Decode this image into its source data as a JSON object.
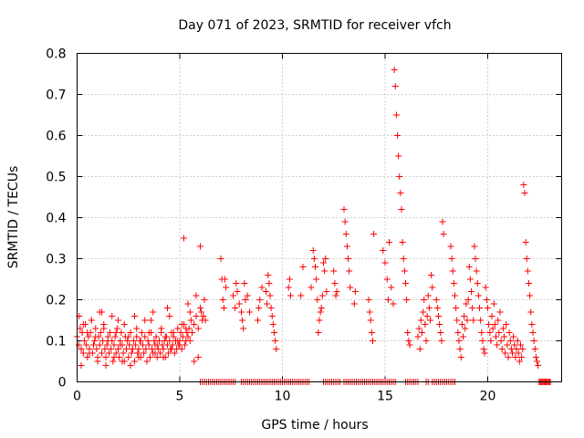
{
  "chart_data": {
    "type": "scatter",
    "title": "Day 071 of 2023, SRMTID for receiver vfch",
    "xlabel": "GPS time / hours",
    "ylabel": "SRMTID / TECUs",
    "xlim": [
      0,
      23.6
    ],
    "ylim": [
      0,
      0.8
    ],
    "x_ticks": [
      0,
      5,
      10,
      15,
      20
    ],
    "x_tick_labels": [
      "0",
      "5",
      "10",
      "15",
      "20"
    ],
    "y_ticks": [
      0,
      0.1,
      0.2,
      0.3,
      0.4,
      0.5,
      0.6,
      0.7,
      0.8
    ],
    "y_tick_labels": [
      "0",
      "0.1",
      "0.2",
      "0.3",
      "0.4",
      "0.5",
      "0.6",
      "0.7",
      "0.8"
    ],
    "grid": true,
    "marker": "+",
    "color": "#ff0000",
    "series": [
      {
        "name": "vfch",
        "x": [
          0.0,
          0.08,
          0.15,
          0.2,
          0.25,
          0.3,
          0.35,
          0.4,
          0.45,
          0.5,
          0.55,
          0.6,
          0.65,
          0.7,
          0.75,
          0.8,
          0.85,
          0.9,
          0.95,
          1.0,
          1.05,
          1.1,
          1.15,
          1.2,
          1.25,
          1.3,
          1.35,
          1.4,
          1.45,
          1.5,
          1.55,
          1.6,
          1.65,
          1.7,
          1.75,
          1.8,
          1.85,
          1.9,
          1.95,
          2.0,
          2.05,
          2.1,
          2.15,
          2.2,
          2.25,
          2.3,
          2.35,
          2.4,
          2.45,
          2.5,
          2.55,
          2.6,
          2.65,
          2.7,
          2.75,
          2.8,
          2.85,
          2.9,
          2.95,
          3.0,
          3.05,
          3.1,
          3.15,
          3.2,
          3.25,
          3.3,
          3.35,
          3.4,
          3.45,
          3.5,
          3.55,
          3.6,
          3.65,
          3.7,
          3.75,
          3.8,
          3.85,
          3.9,
          3.95,
          4.0,
          4.05,
          4.1,
          4.15,
          4.2,
          4.25,
          4.3,
          4.35,
          4.4,
          4.45,
          4.5,
          4.55,
          4.6,
          4.65,
          4.7,
          4.75,
          4.8,
          4.85,
          4.9,
          4.95,
          5.0,
          5.05,
          5.1,
          5.15,
          5.2,
          5.25,
          5.3,
          5.35,
          5.4,
          5.45,
          5.5,
          5.55,
          5.6,
          5.7,
          5.8,
          5.9,
          6.0,
          6.1,
          6.2,
          0.1,
          0.3,
          0.5,
          0.7,
          0.9,
          1.1,
          1.3,
          1.5,
          1.7,
          1.9,
          2.1,
          2.3,
          2.5,
          2.7,
          2.9,
          3.1,
          3.3,
          3.5,
          3.7,
          3.9,
          4.1,
          4.3,
          4.5,
          4.7,
          4.9,
          5.1,
          5.3,
          5.5,
          5.7,
          5.9,
          0.2,
          0.6,
          1.0,
          1.4,
          1.8,
          2.2,
          2.6,
          3.0,
          3.4,
          3.8,
          4.2,
          4.6,
          5.0,
          5.4,
          5.8,
          6.05,
          6.15,
          6.25,
          0.4,
          1.2,
          2.0,
          2.8,
          3.6,
          4.4,
          5.2,
          6.0,
          7.0,
          7.05,
          7.1,
          7.15,
          7.2,
          7.25,
          7.6,
          7.7,
          7.75,
          7.8,
          7.9,
          8.0,
          8.05,
          8.1,
          8.15,
          8.2,
          8.3,
          8.4,
          8.8,
          8.85,
          8.9,
          9.0,
          9.2,
          9.25,
          9.3,
          9.35,
          9.4,
          9.45,
          9.5,
          9.55,
          9.6,
          9.65,
          9.7,
          10.3,
          10.35,
          10.4,
          10.9,
          11.0,
          11.4,
          11.5,
          11.55,
          11.6,
          11.65,
          11.7,
          11.75,
          11.8,
          11.85,
          11.9,
          11.95,
          12.0,
          12.05,
          12.1,
          12.15,
          12.5,
          12.55,
          12.6,
          12.65,
          13.0,
          13.05,
          13.1,
          13.15,
          13.2,
          13.25,
          13.3,
          13.5,
          13.55,
          14.2,
          14.25,
          14.3,
          14.35,
          14.4,
          14.45,
          14.9,
          15.0,
          15.1,
          15.15,
          15.2,
          15.3,
          15.4,
          15.45,
          15.5,
          15.55,
          15.6,
          15.65,
          15.7,
          15.75,
          15.8,
          15.85,
          15.9,
          15.95,
          16.0,
          16.05,
          16.1,
          16.15,
          16.2,
          16.6,
          16.65,
          16.7,
          16.75,
          16.8,
          16.85,
          16.9,
          16.95,
          17.0,
          17.05,
          17.1,
          17.15,
          17.2,
          17.25,
          17.3,
          17.5,
          17.55,
          17.6,
          17.65,
          17.7,
          17.75,
          17.8,
          17.85,
          18.2,
          18.25,
          18.3,
          18.35,
          18.4,
          18.45,
          18.5,
          18.55,
          18.6,
          18.65,
          18.7,
          18.75,
          18.8,
          18.85,
          18.9,
          18.95,
          19.0,
          19.05,
          19.1,
          19.15,
          19.2,
          19.25,
          19.3,
          19.35,
          19.4,
          19.45,
          19.5,
          19.55,
          19.6,
          19.65,
          19.7,
          19.75,
          19.8,
          19.85,
          19.9,
          19.95,
          20.0,
          20.05,
          20.1,
          20.15,
          20.2,
          20.25,
          20.3,
          20.35,
          20.4,
          20.45,
          20.5,
          20.55,
          20.6,
          20.65,
          20.7,
          20.75,
          20.8,
          20.85,
          20.9,
          20.95,
          21.0,
          21.05,
          21.1,
          21.15,
          21.2,
          21.25,
          21.3,
          21.35,
          21.4,
          21.45,
          21.5,
          21.55,
          21.6,
          21.65,
          21.7,
          21.75,
          21.8,
          21.85,
          21.9,
          21.95,
          22.0,
          22.05,
          22.1,
          22.15,
          22.2,
          22.25,
          22.3,
          22.35,
          22.4,
          22.45,
          22.5,
          22.55,
          22.6,
          22.65,
          22.7,
          22.75,
          22.8,
          22.85,
          22.9,
          22.95,
          23.0,
          23.05,
          6.0,
          6.1,
          6.2,
          6.3,
          6.4,
          6.5,
          6.6,
          6.7,
          6.8,
          6.9,
          7.0,
          7.1,
          7.2,
          7.3,
          7.4,
          7.5,
          7.6,
          7.7,
          8.0,
          8.1,
          8.2,
          8.3,
          8.4,
          8.5,
          8.6,
          8.7,
          8.8,
          8.9,
          9.0,
          9.1,
          9.2,
          9.3,
          9.4,
          9.5,
          9.6,
          9.7,
          9.8,
          9.9,
          10.0,
          10.1,
          10.2,
          10.3,
          10.4,
          10.5,
          10.6,
          10.7,
          10.8,
          10.9,
          11.0,
          11.1,
          11.2,
          11.3,
          12.0,
          12.1,
          12.2,
          12.3,
          12.4,
          12.5,
          12.6,
          12.7,
          12.8,
          13.0,
          13.1,
          13.2,
          13.3,
          13.4,
          13.5,
          13.6,
          13.7,
          13.8,
          13.9,
          14.0,
          14.1,
          14.2,
          14.3,
          14.4,
          14.5,
          14.6,
          14.7,
          14.8,
          14.9,
          15.0,
          15.1,
          15.2,
          15.3,
          15.4,
          15.5,
          16.0,
          16.1,
          16.2,
          16.3,
          16.4,
          16.5,
          16.6,
          17.0,
          17.1,
          17.3,
          17.4,
          17.5,
          17.6,
          17.7,
          17.8,
          17.9,
          18.0,
          18.1,
          18.2,
          18.3,
          18.4
        ],
        "y": [
          0.11,
          0.09,
          0.13,
          0.08,
          0.12,
          0.07,
          0.1,
          0.14,
          0.09,
          0.06,
          0.11,
          0.08,
          0.12,
          0.15,
          0.07,
          0.09,
          0.1,
          0.13,
          0.08,
          0.06,
          0.11,
          0.09,
          0.12,
          0.07,
          0.1,
          0.14,
          0.08,
          0.06,
          0.09,
          0.11,
          0.07,
          0.12,
          0.08,
          0.1,
          0.05,
          0.09,
          0.11,
          0.07,
          0.13,
          0.08,
          0.06,
          0.1,
          0.12,
          0.09,
          0.07,
          0.05,
          0.11,
          0.08,
          0.1,
          0.06,
          0.09,
          0.12,
          0.07,
          0.08,
          0.1,
          0.05,
          0.09,
          0.11,
          0.07,
          0.08,
          0.1,
          0.06,
          0.12,
          0.09,
          0.07,
          0.11,
          0.08,
          0.05,
          0.1,
          0.09,
          0.06,
          0.12,
          0.08,
          0.07,
          0.1,
          0.09,
          0.11,
          0.06,
          0.08,
          0.1,
          0.07,
          0.12,
          0.09,
          0.08,
          0.1,
          0.06,
          0.11,
          0.09,
          0.07,
          0.1,
          0.08,
          0.12,
          0.09,
          0.11,
          0.07,
          0.1,
          0.08,
          0.13,
          0.09,
          0.1,
          0.12,
          0.08,
          0.11,
          0.14,
          0.09,
          0.1,
          0.12,
          0.11,
          0.13,
          0.1,
          0.15,
          0.12,
          0.14,
          0.16,
          0.13,
          0.18,
          0.15,
          0.2,
          0.16,
          0.14,
          0.12,
          0.15,
          0.11,
          0.17,
          0.13,
          0.1,
          0.16,
          0.12,
          0.09,
          0.14,
          0.11,
          0.08,
          0.13,
          0.1,
          0.15,
          0.12,
          0.17,
          0.09,
          0.13,
          0.11,
          0.16,
          0.12,
          0.1,
          0.14,
          0.13,
          0.17,
          0.05,
          0.06,
          0.04,
          0.07,
          0.05,
          0.04,
          0.06,
          0.05,
          0.04,
          0.06,
          0.05,
          0.07,
          0.06,
          0.08,
          0.09,
          0.19,
          0.21,
          0.17,
          0.16,
          0.15,
          0.14,
          0.17,
          0.15,
          0.16,
          0.15,
          0.18,
          0.35,
          0.33,
          0.3,
          0.25,
          0.2,
          0.18,
          0.25,
          0.23,
          0.21,
          0.18,
          0.24,
          0.22,
          0.19,
          0.17,
          0.15,
          0.13,
          0.24,
          0.2,
          0.21,
          0.17,
          0.15,
          0.18,
          0.2,
          0.23,
          0.22,
          0.19,
          0.26,
          0.24,
          0.21,
          0.18,
          0.16,
          0.14,
          0.12,
          0.1,
          0.08,
          0.23,
          0.25,
          0.21,
          0.21,
          0.28,
          0.23,
          0.32,
          0.3,
          0.28,
          0.25,
          0.2,
          0.12,
          0.15,
          0.17,
          0.18,
          0.21,
          0.29,
          0.27,
          0.3,
          0.22,
          0.27,
          0.24,
          0.21,
          0.22,
          0.42,
          0.39,
          0.36,
          0.33,
          0.3,
          0.27,
          0.23,
          0.19,
          0.22,
          0.2,
          0.17,
          0.15,
          0.12,
          0.1,
          0.36,
          0.32,
          0.29,
          0.25,
          0.2,
          0.34,
          0.23,
          0.19,
          0.76,
          0.72,
          0.65,
          0.6,
          0.55,
          0.5,
          0.46,
          0.42,
          0.34,
          0.3,
          0.27,
          0.24,
          0.2,
          0.12,
          0.1,
          0.09,
          0.11,
          0.13,
          0.08,
          0.15,
          0.12,
          0.17,
          0.2,
          0.14,
          0.1,
          0.16,
          0.21,
          0.18,
          0.15,
          0.26,
          0.23,
          0.2,
          0.18,
          0.16,
          0.14,
          0.12,
          0.1,
          0.39,
          0.36,
          0.33,
          0.3,
          0.27,
          0.24,
          0.21,
          0.18,
          0.15,
          0.12,
          0.1,
          0.08,
          0.06,
          0.14,
          0.11,
          0.16,
          0.13,
          0.19,
          0.15,
          0.2,
          0.28,
          0.25,
          0.22,
          0.18,
          0.15,
          0.33,
          0.3,
          0.27,
          0.24,
          0.21,
          0.18,
          0.15,
          0.12,
          0.1,
          0.08,
          0.07,
          0.23,
          0.2,
          0.18,
          0.14,
          0.12,
          0.1,
          0.16,
          0.13,
          0.19,
          0.14,
          0.11,
          0.09,
          0.15,
          0.12,
          0.17,
          0.1,
          0.08,
          0.13,
          0.11,
          0.07,
          0.14,
          0.09,
          0.06,
          0.12,
          0.1,
          0.08,
          0.07,
          0.11,
          0.09,
          0.06,
          0.08,
          0.1,
          0.07,
          0.05,
          0.09,
          0.06,
          0.08,
          0.48,
          0.46,
          0.34,
          0.3,
          0.27,
          0.24,
          0.21,
          0.17,
          0.14,
          0.12,
          0.1,
          0.08,
          0.06,
          0.05,
          0.04,
          0.0,
          0.0,
          0.0,
          0.0,
          0.0,
          0.0,
          0.0,
          0.0,
          0.0,
          0.0,
          0.0,
          0.0,
          0.0,
          0.0,
          0.0,
          0.0,
          0.0,
          0.0,
          0.0,
          0.0,
          0.0,
          0.0,
          0.0,
          0.0,
          0.0,
          0.0,
          0.0,
          0.0,
          0.0,
          0.0,
          0.0,
          0.0,
          0.0,
          0.0,
          0.0,
          0.0,
          0.0,
          0.0,
          0.0,
          0.0,
          0.0,
          0.0,
          0.0,
          0.0,
          0.0,
          0.0,
          0.0,
          0.0,
          0.0,
          0.0,
          0.0,
          0.0,
          0.0,
          0.0,
          0.0,
          0.0,
          0.0,
          0.0,
          0.0,
          0.0,
          0.0,
          0.0,
          0.0,
          0.0,
          0.0,
          0.0,
          0.0,
          0.0,
          0.0,
          0.0,
          0.0,
          0.0,
          0.0,
          0.0,
          0.0,
          0.0,
          0.0,
          0.0,
          0.0,
          0.0,
          0.0,
          0.0,
          0.0,
          0.0,
          0.0,
          0.0,
          0.0,
          0.0,
          0.0,
          0.0,
          0.0,
          0.0,
          0.0,
          0.0,
          0.0,
          0.0,
          0.0,
          0.0,
          0.0,
          0.0,
          0.0,
          0.0,
          0.0,
          0.0,
          0.0,
          0.0,
          0.0,
          0.0,
          0.0,
          0.0,
          0.0,
          0.0,
          0.0,
          0.0,
          0.0,
          0.0,
          0.0,
          0.0,
          0.0,
          0.0
        ]
      }
    ]
  }
}
